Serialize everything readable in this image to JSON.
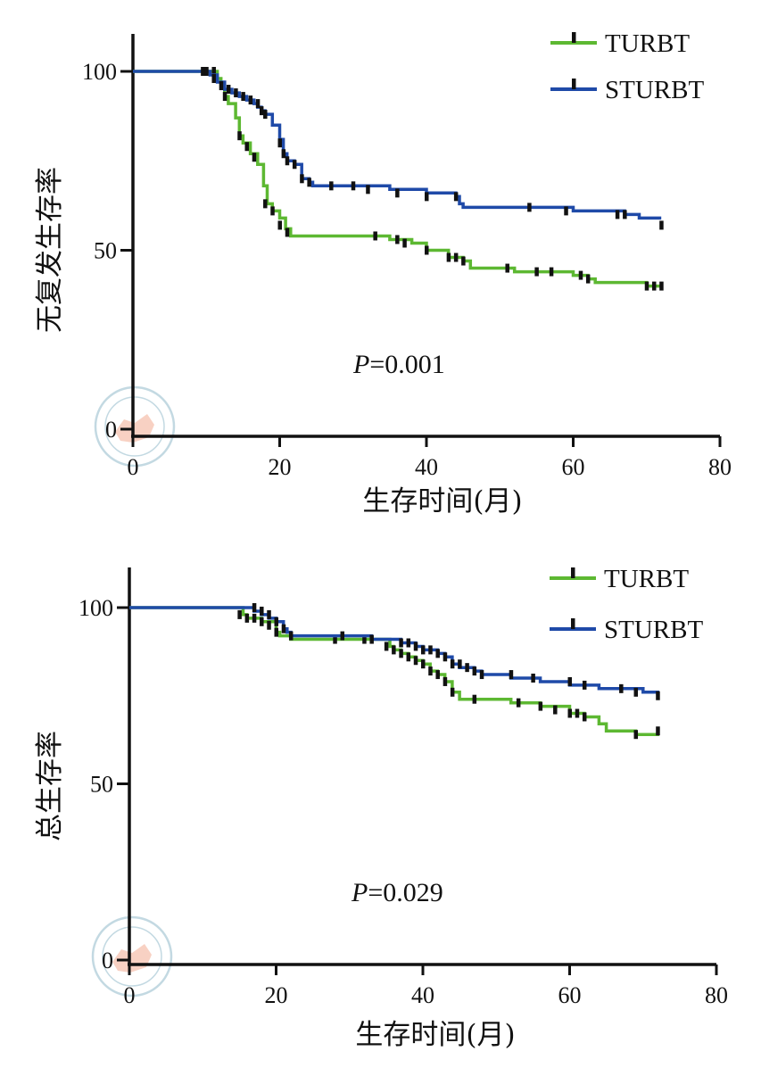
{
  "colors": {
    "turbt": "#5db832",
    "sturbt": "#1f4aa8",
    "axis": "#111111",
    "watermark": "#b9d3dd",
    "watermark_fill": "#f4b7a2"
  },
  "chart_data": [
    {
      "type": "line",
      "subtype": "kaplan-meier",
      "xlabel": "生存时间(月)",
      "ylabel": "无复发生存率",
      "xlim": [
        0,
        80
      ],
      "ylim": [
        0,
        110
      ],
      "x_ticks": [
        "0",
        "20",
        "40",
        "60",
        "80"
      ],
      "y_ticks": [
        "0",
        "50",
        "100"
      ],
      "legend_position": "top-right",
      "annotation": {
        "italic": "P",
        "rest": "=0.001"
      },
      "series": [
        {
          "name": "TURBT",
          "color_key": "turbt",
          "steps": [
            [
              0,
              100
            ],
            [
              11,
              100
            ],
            [
              11.5,
              98
            ],
            [
              12,
              96
            ],
            [
              12.5,
              93
            ],
            [
              13,
              91
            ],
            [
              14,
              87
            ],
            [
              14.5,
              82
            ],
            [
              15,
              80
            ],
            [
              16,
              77
            ],
            [
              17,
              74
            ],
            [
              17.8,
              68
            ],
            [
              18.3,
              63
            ],
            [
              19,
              61
            ],
            [
              20,
              59
            ],
            [
              20.8,
              56
            ],
            [
              21.5,
              54
            ],
            [
              33,
              54
            ],
            [
              35,
              53
            ],
            [
              38,
              52
            ],
            [
              40,
              50
            ],
            [
              43,
              48
            ],
            [
              45,
              47
            ],
            [
              46,
              45
            ],
            [
              50,
              45
            ],
            [
              52,
              44
            ],
            [
              57,
              44
            ],
            [
              60,
              43
            ],
            [
              62,
              42
            ],
            [
              63,
              41
            ],
            [
              66,
              41
            ],
            [
              70,
              40
            ],
            [
              72,
              40
            ]
          ],
          "censors": [
            [
              11,
              100
            ],
            [
              12.5,
              93
            ],
            [
              14.5,
              82
            ],
            [
              15.5,
              79
            ],
            [
              16.5,
              76
            ],
            [
              18,
              63
            ],
            [
              19,
              61
            ],
            [
              20,
              57
            ],
            [
              21,
              55
            ],
            [
              33,
              54
            ],
            [
              36,
              53
            ],
            [
              37,
              52
            ],
            [
              40,
              50
            ],
            [
              43,
              48
            ],
            [
              44,
              48
            ],
            [
              45,
              47
            ],
            [
              51,
              45
            ],
            [
              55,
              44
            ],
            [
              57,
              44
            ],
            [
              61,
              43
            ],
            [
              62,
              42
            ],
            [
              70,
              40
            ],
            [
              71,
              40
            ],
            [
              72,
              40
            ]
          ]
        },
        {
          "name": "STURBT",
          "color_key": "sturbt",
          "steps": [
            [
              0,
              100
            ],
            [
              9.5,
              100
            ],
            [
              10.5,
              99
            ],
            [
              11.5,
              97
            ],
            [
              12.5,
              95
            ],
            [
              13.5,
              94
            ],
            [
              14.5,
              93
            ],
            [
              15.5,
              92
            ],
            [
              16.5,
              91
            ],
            [
              17,
              90
            ],
            [
              17.5,
              89
            ],
            [
              18,
              88
            ],
            [
              19,
              85
            ],
            [
              20,
              81
            ],
            [
              20.5,
              77
            ],
            [
              21,
              75
            ],
            [
              22,
              74
            ],
            [
              23,
              70
            ],
            [
              24,
              69
            ],
            [
              24.5,
              68
            ],
            [
              30,
              68
            ],
            [
              35,
              67
            ],
            [
              40,
              66
            ],
            [
              44,
              65
            ],
            [
              44.5,
              63
            ],
            [
              45,
              62
            ],
            [
              54,
              62
            ],
            [
              60,
              61
            ],
            [
              67,
              60
            ],
            [
              69,
              59
            ],
            [
              72,
              59
            ]
          ],
          "censors": [
            [
              9.5,
              100
            ],
            [
              10,
              100
            ],
            [
              11,
              98
            ],
            [
              12,
              96
            ],
            [
              13,
              95
            ],
            [
              14,
              94
            ],
            [
              15,
              93
            ],
            [
              16,
              92
            ],
            [
              17,
              91
            ],
            [
              17.5,
              89
            ],
            [
              18,
              88
            ],
            [
              20,
              80
            ],
            [
              20.5,
              77
            ],
            [
              21,
              75
            ],
            [
              22,
              74
            ],
            [
              23,
              70
            ],
            [
              24,
              69
            ],
            [
              27,
              68
            ],
            [
              30,
              68
            ],
            [
              32,
              67
            ],
            [
              36,
              66
            ],
            [
              40,
              65
            ],
            [
              44,
              65
            ],
            [
              54,
              62
            ],
            [
              59,
              61
            ],
            [
              66,
              60
            ],
            [
              67,
              60
            ],
            [
              72,
              57
            ]
          ]
        }
      ]
    },
    {
      "type": "line",
      "subtype": "kaplan-meier",
      "xlabel": "生存时间(月)",
      "ylabel": "总生存率",
      "xlim": [
        0,
        80
      ],
      "ylim": [
        0,
        110
      ],
      "x_ticks": [
        "0",
        "20",
        "40",
        "60",
        "80"
      ],
      "y_ticks": [
        "0",
        "50",
        "100"
      ],
      "legend_position": "top-right",
      "annotation": {
        "italic": "P",
        "rest": "=0.029"
      },
      "series": [
        {
          "name": "TURBT",
          "color_key": "turbt",
          "steps": [
            [
              0,
              100
            ],
            [
              15,
              100
            ],
            [
              15.5,
              98
            ],
            [
              16,
              97
            ],
            [
              17,
              97
            ],
            [
              18,
              96
            ],
            [
              19,
              96
            ],
            [
              20,
              93
            ],
            [
              20.5,
              92
            ],
            [
              22,
              91
            ],
            [
              35,
              91
            ],
            [
              35.5,
              89
            ],
            [
              36,
              88
            ],
            [
              37,
              87
            ],
            [
              38,
              86
            ],
            [
              39,
              85
            ],
            [
              40,
              84
            ],
            [
              41,
              82
            ],
            [
              42,
              81
            ],
            [
              43,
              79
            ],
            [
              44,
              76
            ],
            [
              45,
              74
            ],
            [
              52,
              73
            ],
            [
              56,
              72
            ],
            [
              60,
              70
            ],
            [
              62,
              69
            ],
            [
              64,
              67
            ],
            [
              65,
              65
            ],
            [
              69,
              64
            ],
            [
              72,
              65
            ]
          ],
          "censors": [
            [
              15,
              98
            ],
            [
              16,
              97
            ],
            [
              17,
              97
            ],
            [
              18,
              96
            ],
            [
              19,
              95
            ],
            [
              20,
              93
            ],
            [
              28,
              91
            ],
            [
              32,
              91
            ],
            [
              35,
              89
            ],
            [
              36,
              88
            ],
            [
              37,
              87
            ],
            [
              38,
              86
            ],
            [
              39,
              85
            ],
            [
              40,
              84
            ],
            [
              41,
              82
            ],
            [
              42,
              81
            ],
            [
              43,
              79
            ],
            [
              44,
              76
            ],
            [
              47,
              74
            ],
            [
              53,
              73
            ],
            [
              56,
              72
            ],
            [
              58,
              71
            ],
            [
              60,
              70
            ],
            [
              61,
              70
            ],
            [
              62,
              69
            ],
            [
              69,
              64
            ],
            [
              72,
              65
            ]
          ]
        },
        {
          "name": "STURBT",
          "color_key": "sturbt",
          "steps": [
            [
              0,
              100
            ],
            [
              16,
              100
            ],
            [
              17,
              99
            ],
            [
              18,
              98
            ],
            [
              19,
              97
            ],
            [
              20,
              96
            ],
            [
              21,
              94
            ],
            [
              21.5,
              93
            ],
            [
              22,
              92
            ],
            [
              29,
              92
            ],
            [
              33,
              91
            ],
            [
              36,
              91
            ],
            [
              37,
              90
            ],
            [
              39,
              89
            ],
            [
              40,
              88
            ],
            [
              42,
              87
            ],
            [
              43,
              86
            ],
            [
              44,
              84
            ],
            [
              45,
              83
            ],
            [
              47,
              82
            ],
            [
              48,
              81
            ],
            [
              52,
              80
            ],
            [
              55,
              80
            ],
            [
              56,
              79
            ],
            [
              60,
              78
            ],
            [
              62,
              78
            ],
            [
              64,
              77
            ],
            [
              70,
              76
            ],
            [
              72,
              75
            ]
          ],
          "censors": [
            [
              17,
              100
            ],
            [
              18,
              99
            ],
            [
              19,
              98
            ],
            [
              20,
              96
            ],
            [
              21,
              94
            ],
            [
              22,
              92
            ],
            [
              29,
              92
            ],
            [
              33,
              91
            ],
            [
              37,
              90
            ],
            [
              38,
              90
            ],
            [
              39,
              89
            ],
            [
              40,
              88
            ],
            [
              41,
              88
            ],
            [
              42,
              87
            ],
            [
              43,
              86
            ],
            [
              44,
              84
            ],
            [
              45,
              84
            ],
            [
              46,
              83
            ],
            [
              47,
              82
            ],
            [
              48,
              81
            ],
            [
              52,
              81
            ],
            [
              55,
              80
            ],
            [
              60,
              79
            ],
            [
              62,
              78
            ],
            [
              67,
              77
            ],
            [
              69,
              76
            ],
            [
              72,
              75
            ]
          ]
        }
      ]
    }
  ]
}
